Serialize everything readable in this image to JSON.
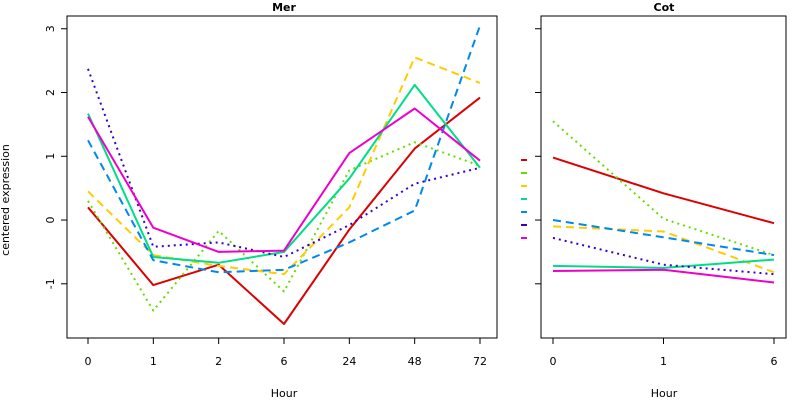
{
  "chart_data": [
    {
      "type": "line",
      "title": "Mer",
      "xlabel": "Hour",
      "ylabel": "centered expression",
      "categories": [
        "0",
        "1",
        "2",
        "6",
        "24",
        "48",
        "72"
      ],
      "ylim": [
        -1.85,
        3.2
      ],
      "yticks": [
        -1,
        0,
        1,
        2,
        3
      ],
      "series": [
        {
          "color": "#dd0000",
          "dash": "solid",
          "values": [
            0.2,
            -1.02,
            -0.7,
            -1.63,
            -0.15,
            1.12,
            1.92
          ]
        },
        {
          "color": "#66dd00",
          "dash": "dotted",
          "values": [
            0.3,
            -1.42,
            -0.17,
            -1.12,
            0.78,
            1.22,
            0.85
          ]
        },
        {
          "color": "#ffcc00",
          "dash": "dashed",
          "values": [
            0.45,
            -0.55,
            -0.72,
            -0.85,
            0.2,
            2.55,
            2.15
          ]
        },
        {
          "color": "#00dd88",
          "dash": "solid",
          "values": [
            1.67,
            -0.58,
            -0.67,
            -0.5,
            0.65,
            2.12,
            0.82
          ]
        },
        {
          "color": "#0088ee",
          "dash": "dashed",
          "values": [
            1.25,
            -0.63,
            -0.82,
            -0.78,
            -0.35,
            0.15,
            3.05
          ]
        },
        {
          "color": "#3300cc",
          "dash": "dotted",
          "values": [
            2.37,
            -0.42,
            -0.35,
            -0.58,
            -0.08,
            0.57,
            0.82
          ]
        },
        {
          "color": "#ee00cc",
          "dash": "solid",
          "values": [
            1.62,
            -0.12,
            -0.5,
            -0.48,
            1.05,
            1.75,
            0.93
          ]
        }
      ]
    },
    {
      "type": "line",
      "title": "Cot",
      "xlabel": "Hour",
      "categories": [
        "0",
        "1",
        "6"
      ],
      "ylim": [
        -1.85,
        3.2
      ],
      "series": [
        {
          "color": "#dd0000",
          "dash": "solid",
          "values": [
            0.98,
            0.42,
            -0.05
          ]
        },
        {
          "color": "#66dd00",
          "dash": "dotted",
          "values": [
            1.55,
            0.02,
            -0.55
          ]
        },
        {
          "color": "#ffcc00",
          "dash": "dashed",
          "values": [
            -0.1,
            -0.18,
            -0.82
          ]
        },
        {
          "color": "#00dd88",
          "dash": "solid",
          "values": [
            -0.72,
            -0.75,
            -0.62
          ]
        },
        {
          "color": "#0088ee",
          "dash": "dashed",
          "values": [
            0.0,
            -0.27,
            -0.55
          ]
        },
        {
          "color": "#3300cc",
          "dash": "dotted",
          "values": [
            -0.28,
            -0.7,
            -0.85
          ]
        },
        {
          "color": "#ee00cc",
          "dash": "solid",
          "values": [
            -0.8,
            -0.78,
            -0.98
          ]
        }
      ]
    }
  ]
}
